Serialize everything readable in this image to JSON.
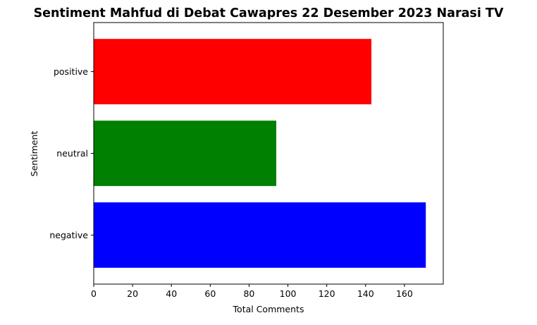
{
  "chart_data": {
    "type": "bar",
    "orientation": "horizontal",
    "title": "Sentiment Mahfud di Debat Cawapres 22 Desember 2023 Narasi TV",
    "xlabel": "Total Comments",
    "ylabel": "Sentiment",
    "categories": [
      "negative",
      "neutral",
      "positive"
    ],
    "values": [
      171,
      94,
      143
    ],
    "colors": [
      "#0000ff",
      "#008000",
      "#ff0000"
    ],
    "xlim": [
      0,
      180
    ],
    "xticks": [
      0,
      20,
      40,
      60,
      80,
      100,
      120,
      140,
      160
    ],
    "grid": false,
    "legend": "none"
  }
}
